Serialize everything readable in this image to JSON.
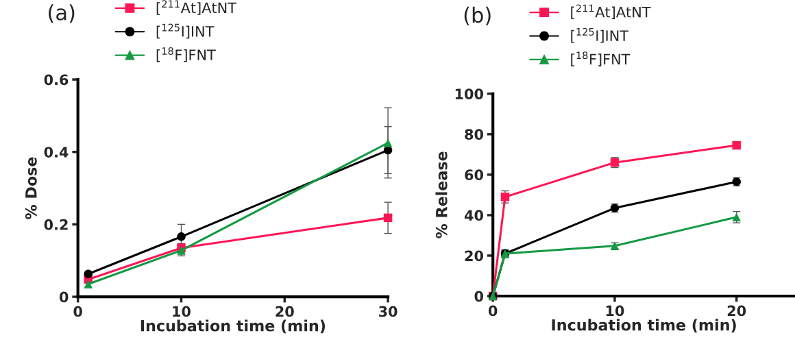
{
  "chart_data": [
    {
      "type": "line",
      "title": "(a)",
      "xlabel": "Incubation time (min)",
      "ylabel": "% Dose",
      "xlim": [
        0,
        30
      ],
      "xticks": [
        0,
        10,
        20,
        30
      ],
      "ylim": [
        0,
        0.6
      ],
      "yticks": [
        0,
        0.2,
        0.4,
        0.6
      ],
      "legend": "top",
      "grid": false,
      "series": [
        {
          "name": "[$^{211}$At]AtNT",
          "color": "#ff1654",
          "marker": "square",
          "x": [
            1,
            10,
            30
          ],
          "values": [
            0.048,
            0.135,
            0.218
          ],
          "errors": [
            null,
            0.012,
            0.043
          ]
        },
        {
          "name": "[$^{125}$I]INT",
          "color": "#000000",
          "marker": "circle",
          "x": [
            1,
            10,
            30
          ],
          "values": [
            0.063,
            0.166,
            0.405
          ],
          "errors": [
            null,
            0.034,
            0.065
          ]
        },
        {
          "name": "[$^{18}$F]FNT",
          "color": "#139a43",
          "marker": "triangle",
          "x": [
            1,
            10,
            30
          ],
          "values": [
            0.035,
            0.128,
            0.425
          ],
          "errors": [
            null,
            0.015,
            0.097
          ]
        }
      ]
    },
    {
      "type": "line",
      "title": "(b)",
      "xlabel": "Incubation time (min)",
      "ylabel": "% Release",
      "xlim": [
        0,
        24.8
      ],
      "xticks": [
        0,
        10,
        20
      ],
      "ylim": [
        0,
        100
      ],
      "yticks": [
        0,
        20,
        40,
        60,
        80,
        100
      ],
      "legend": "top",
      "grid": false,
      "series": [
        {
          "name": "[$^{211}$At]AtNT",
          "color": "#ff1654",
          "marker": "square",
          "x": [
            0,
            1,
            10,
            20
          ],
          "values": [
            0,
            49,
            66,
            74.5
          ],
          "errors": [
            null,
            3,
            2.5,
            null
          ]
        },
        {
          "name": "[$^{125}$I]INT",
          "color": "#000000",
          "marker": "circle",
          "x": [
            0,
            1,
            10,
            20
          ],
          "values": [
            0,
            21,
            43.5,
            56.5
          ],
          "errors": [
            null,
            2,
            2,
            2
          ]
        },
        {
          "name": "[$^{18}$F]FNT",
          "color": "#139a43",
          "marker": "triangle",
          "x": [
            0,
            1,
            10,
            20
          ],
          "values": [
            0,
            21,
            24.8,
            39
          ],
          "errors": [
            null,
            1.5,
            1.5,
            2.8
          ]
        }
      ]
    }
  ]
}
